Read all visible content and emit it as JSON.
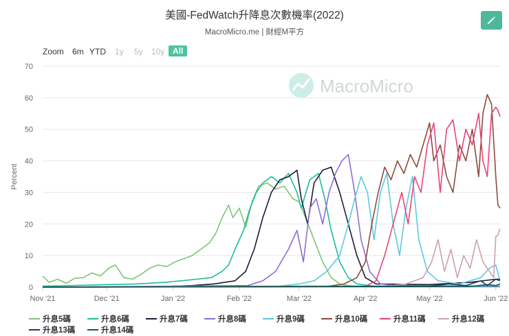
{
  "header": {
    "title": "美國-FedWatch升降息次數機率(2022)",
    "subtitle": "MacroMicro.me | 財經M平方",
    "edit_icon": "pencil-icon"
  },
  "range_selector": {
    "label": "Zoom",
    "buttons": [
      {
        "label": "6m",
        "state": "enabled"
      },
      {
        "label": "YTD",
        "state": "enabled"
      },
      {
        "label": "1y",
        "state": "disabled"
      },
      {
        "label": "5y",
        "state": "disabled"
      },
      {
        "label": "10y",
        "state": "disabled"
      },
      {
        "label": "All",
        "state": "active"
      }
    ]
  },
  "watermark": "MacroMicro",
  "chart_data": {
    "type": "line",
    "title": "美國-FedWatch升降息次數機率(2022)",
    "ylabel": "Percent",
    "ylim": [
      0,
      70
    ],
    "yticks": [
      0,
      10,
      20,
      30,
      40,
      50,
      60,
      70
    ],
    "xlim": [
      "2021-11-01",
      "2022-06-03"
    ],
    "xticks": [
      {
        "date": "2021-11-01",
        "label": "Nov '21"
      },
      {
        "date": "2021-12-01",
        "label": "Dec '21"
      },
      {
        "date": "2022-01-01",
        "label": "Jan '22"
      },
      {
        "date": "2022-02-01",
        "label": "Feb '22"
      },
      {
        "date": "2022-03-01",
        "label": "Mar '22"
      },
      {
        "date": "2022-04-01",
        "label": "Apr '22"
      },
      {
        "date": "2022-05-01",
        "label": "May '22"
      },
      {
        "date": "2022-06-01",
        "label": "Jun '22"
      }
    ],
    "grid": "horizontal",
    "legend_position": "bottom",
    "series": [
      {
        "name": "升息5碼",
        "color": "#7cc576",
        "points": [
          [
            "2021-11-01",
            3.5
          ],
          [
            "2021-11-04",
            1.5
          ],
          [
            "2021-11-08",
            2.5
          ],
          [
            "2021-11-12",
            1.2
          ],
          [
            "2021-11-16",
            2.8
          ],
          [
            "2021-11-20",
            3.0
          ],
          [
            "2021-11-24",
            4.5
          ],
          [
            "2021-11-28",
            3.5
          ],
          [
            "2021-12-02",
            6.0
          ],
          [
            "2021-12-05",
            7.0
          ],
          [
            "2021-12-09",
            3.0
          ],
          [
            "2021-12-13",
            2.5
          ],
          [
            "2021-12-17",
            4.0
          ],
          [
            "2021-12-21",
            6.0
          ],
          [
            "2021-12-25",
            7.0
          ],
          [
            "2021-12-29",
            6.5
          ],
          [
            "2022-01-02",
            8.0
          ],
          [
            "2022-01-06",
            9.0
          ],
          [
            "2022-01-10",
            10.0
          ],
          [
            "2022-01-14",
            12.0
          ],
          [
            "2022-01-18",
            14.0
          ],
          [
            "2022-01-21",
            17.0
          ],
          [
            "2022-01-24",
            22.0
          ],
          [
            "2022-01-27",
            26.0
          ],
          [
            "2022-01-29",
            22.0
          ],
          [
            "2022-02-01",
            25.0
          ],
          [
            "2022-02-04",
            19.0
          ],
          [
            "2022-02-07",
            27.0
          ],
          [
            "2022-02-10",
            32.0
          ],
          [
            "2022-02-14",
            33.0
          ],
          [
            "2022-02-18",
            31.0
          ],
          [
            "2022-02-22",
            32.0
          ],
          [
            "2022-02-26",
            28.0
          ],
          [
            "2022-03-01",
            27.0
          ],
          [
            "2022-03-04",
            22.0
          ],
          [
            "2022-03-08",
            15.0
          ],
          [
            "2022-03-12",
            8.0
          ],
          [
            "2022-03-16",
            3.0
          ],
          [
            "2022-03-20",
            1.0
          ],
          [
            "2022-03-24",
            0.5
          ],
          [
            "2022-03-28",
            0.2
          ],
          [
            "2022-04-05",
            0.1
          ],
          [
            "2022-06-03",
            0.1
          ]
        ]
      },
      {
        "name": "升息6碼",
        "color": "#1abc9c",
        "points": [
          [
            "2021-11-01",
            0.3
          ],
          [
            "2021-11-15",
            0.5
          ],
          [
            "2021-12-01",
            0.8
          ],
          [
            "2021-12-15",
            1.0
          ],
          [
            "2021-12-28",
            1.5
          ],
          [
            "2022-01-05",
            2.0
          ],
          [
            "2022-01-12",
            2.5
          ],
          [
            "2022-01-19",
            3.0
          ],
          [
            "2022-01-24",
            5.0
          ],
          [
            "2022-01-27",
            7.0
          ],
          [
            "2022-01-30",
            12.0
          ],
          [
            "2022-02-03",
            18.0
          ],
          [
            "2022-02-06",
            25.0
          ],
          [
            "2022-02-09",
            30.0
          ],
          [
            "2022-02-12",
            33.0
          ],
          [
            "2022-02-16",
            35.0
          ],
          [
            "2022-02-20",
            33.0
          ],
          [
            "2022-02-24",
            36.0
          ],
          [
            "2022-02-28",
            30.0
          ],
          [
            "2022-03-02",
            25.0
          ],
          [
            "2022-03-06",
            34.0
          ],
          [
            "2022-03-10",
            36.0
          ],
          [
            "2022-03-13",
            28.0
          ],
          [
            "2022-03-16",
            18.0
          ],
          [
            "2022-03-20",
            8.0
          ],
          [
            "2022-03-24",
            3.0
          ],
          [
            "2022-03-28",
            1.0
          ],
          [
            "2022-04-05",
            0.3
          ],
          [
            "2022-06-03",
            0.2
          ]
        ]
      },
      {
        "name": "升息7碼",
        "color": "#1a1a3a",
        "points": [
          [
            "2021-11-01",
            0.0
          ],
          [
            "2021-12-25",
            0.1
          ],
          [
            "2022-01-10",
            0.5
          ],
          [
            "2022-01-20",
            1.0
          ],
          [
            "2022-01-30",
            2.0
          ],
          [
            "2022-02-04",
            5.0
          ],
          [
            "2022-02-08",
            12.0
          ],
          [
            "2022-02-12",
            22.0
          ],
          [
            "2022-02-16",
            30.0
          ],
          [
            "2022-02-20",
            34.0
          ],
          [
            "2022-02-24",
            35.0
          ],
          [
            "2022-02-28",
            37.0
          ],
          [
            "2022-03-02",
            28.0
          ],
          [
            "2022-03-05",
            20.0
          ],
          [
            "2022-03-08",
            33.0
          ],
          [
            "2022-03-12",
            37.0
          ],
          [
            "2022-03-16",
            38.0
          ],
          [
            "2022-03-20",
            30.0
          ],
          [
            "2022-03-24",
            20.0
          ],
          [
            "2022-03-28",
            10.0
          ],
          [
            "2022-04-01",
            3.0
          ],
          [
            "2022-04-06",
            1.0
          ],
          [
            "2022-05-01",
            0.8
          ],
          [
            "2022-05-20",
            1.5
          ],
          [
            "2022-06-01",
            2.5
          ],
          [
            "2022-06-03",
            2.0
          ]
        ]
      },
      {
        "name": "升息8碼",
        "color": "#8e6bd8",
        "points": [
          [
            "2021-11-01",
            0.0
          ],
          [
            "2022-02-05",
            0.5
          ],
          [
            "2022-02-12",
            2.0
          ],
          [
            "2022-02-18",
            5.0
          ],
          [
            "2022-02-24",
            12.0
          ],
          [
            "2022-02-28",
            18.0
          ],
          [
            "2022-03-03",
            8.0
          ],
          [
            "2022-03-06",
            25.0
          ],
          [
            "2022-03-09",
            28.0
          ],
          [
            "2022-03-12",
            20.0
          ],
          [
            "2022-03-15",
            30.0
          ],
          [
            "2022-03-18",
            36.0
          ],
          [
            "2022-03-21",
            40.0
          ],
          [
            "2022-03-24",
            42.0
          ],
          [
            "2022-03-27",
            30.0
          ],
          [
            "2022-03-30",
            15.0
          ],
          [
            "2022-04-03",
            5.0
          ],
          [
            "2022-04-08",
            1.0
          ],
          [
            "2022-04-15",
            0.5
          ],
          [
            "2022-06-03",
            0.3
          ]
        ]
      },
      {
        "name": "升息9碼",
        "color": "#5bc8e0",
        "points": [
          [
            "2021-11-01",
            0.0
          ],
          [
            "2022-02-20",
            0.3
          ],
          [
            "2022-03-01",
            1.0
          ],
          [
            "2022-03-08",
            2.0
          ],
          [
            "2022-03-14",
            5.0
          ],
          [
            "2022-03-20",
            10.0
          ],
          [
            "2022-03-24",
            20.0
          ],
          [
            "2022-03-27",
            28.0
          ],
          [
            "2022-03-30",
            35.0
          ],
          [
            "2022-04-02",
            30.0
          ],
          [
            "2022-04-05",
            15.0
          ],
          [
            "2022-04-08",
            30.0
          ],
          [
            "2022-04-11",
            36.0
          ],
          [
            "2022-04-14",
            20.0
          ],
          [
            "2022-04-17",
            10.0
          ],
          [
            "2022-04-20",
            25.0
          ],
          [
            "2022-04-23",
            35.0
          ],
          [
            "2022-04-26",
            15.0
          ],
          [
            "2022-04-30",
            5.0
          ],
          [
            "2022-05-05",
            2.0
          ],
          [
            "2022-05-15",
            1.0
          ],
          [
            "2022-05-25",
            3.0
          ],
          [
            "2022-05-29",
            6.0
          ],
          [
            "2022-06-01",
            7.0
          ],
          [
            "2022-06-03",
            2.0
          ]
        ]
      },
      {
        "name": "升息10碼",
        "color": "#8b4a3a",
        "points": [
          [
            "2021-11-01",
            0.0
          ],
          [
            "2022-03-15",
            0.3
          ],
          [
            "2022-03-22",
            1.0
          ],
          [
            "2022-03-28",
            3.0
          ],
          [
            "2022-04-01",
            8.0
          ],
          [
            "2022-04-04",
            20.0
          ],
          [
            "2022-04-07",
            30.0
          ],
          [
            "2022-04-10",
            38.0
          ],
          [
            "2022-04-13",
            34.0
          ],
          [
            "2022-04-16",
            40.0
          ],
          [
            "2022-04-19",
            36.0
          ],
          [
            "2022-04-22",
            42.0
          ],
          [
            "2022-04-25",
            38.0
          ],
          [
            "2022-04-28",
            45.0
          ],
          [
            "2022-05-01",
            52.0
          ],
          [
            "2022-05-03",
            40.0
          ],
          [
            "2022-05-06",
            45.0
          ],
          [
            "2022-05-09",
            35.0
          ],
          [
            "2022-05-12",
            30.0
          ],
          [
            "2022-05-15",
            45.0
          ],
          [
            "2022-05-18",
            40.0
          ],
          [
            "2022-05-21",
            50.0
          ],
          [
            "2022-05-24",
            35.0
          ],
          [
            "2022-05-26",
            55.0
          ],
          [
            "2022-05-28",
            61.0
          ],
          [
            "2022-05-30",
            58.0
          ],
          [
            "2022-06-01",
            35.0
          ],
          [
            "2022-06-02",
            26.0
          ],
          [
            "2022-06-03",
            25.0
          ]
        ]
      },
      {
        "name": "升息11碼",
        "color": "#e8437a",
        "points": [
          [
            "2021-11-01",
            0.0
          ],
          [
            "2022-04-01",
            0.3
          ],
          [
            "2022-04-06",
            2.0
          ],
          [
            "2022-04-10",
            10.0
          ],
          [
            "2022-04-14",
            20.0
          ],
          [
            "2022-04-18",
            30.0
          ],
          [
            "2022-04-21",
            20.0
          ],
          [
            "2022-04-24",
            35.0
          ],
          [
            "2022-04-27",
            30.0
          ],
          [
            "2022-04-30",
            45.0
          ],
          [
            "2022-05-03",
            52.0
          ],
          [
            "2022-05-06",
            30.0
          ],
          [
            "2022-05-09",
            50.0
          ],
          [
            "2022-05-12",
            53.0
          ],
          [
            "2022-05-15",
            40.0
          ],
          [
            "2022-05-18",
            50.0
          ],
          [
            "2022-05-21",
            45.0
          ],
          [
            "2022-05-24",
            55.0
          ],
          [
            "2022-05-26",
            40.0
          ],
          [
            "2022-05-28",
            35.0
          ],
          [
            "2022-05-30",
            55.0
          ],
          [
            "2022-06-01",
            57.0
          ],
          [
            "2022-06-02",
            56.0
          ],
          [
            "2022-06-03",
            54.0
          ]
        ]
      },
      {
        "name": "升息12碼",
        "color": "#c9a0b4",
        "points": [
          [
            "2021-11-01",
            0.0
          ],
          [
            "2022-04-10",
            0.3
          ],
          [
            "2022-04-20",
            1.0
          ],
          [
            "2022-04-28",
            3.0
          ],
          [
            "2022-05-02",
            8.0
          ],
          [
            "2022-05-05",
            15.0
          ],
          [
            "2022-05-08",
            5.0
          ],
          [
            "2022-05-11",
            12.0
          ],
          [
            "2022-05-14",
            3.0
          ],
          [
            "2022-05-17",
            10.0
          ],
          [
            "2022-05-20",
            6.0
          ],
          [
            "2022-05-23",
            15.0
          ],
          [
            "2022-05-26",
            8.0
          ],
          [
            "2022-05-29",
            5.0
          ],
          [
            "2022-05-31",
            3.0
          ],
          [
            "2022-06-01",
            16.0
          ],
          [
            "2022-06-02",
            16.5
          ],
          [
            "2022-06-03",
            18.5
          ]
        ]
      },
      {
        "name": "升息13碼",
        "color": "#1f3a5f",
        "points": [
          [
            "2021-11-01",
            0.0
          ],
          [
            "2022-05-01",
            0.3
          ],
          [
            "2022-05-10",
            1.0
          ],
          [
            "2022-05-18",
            0.5
          ],
          [
            "2022-05-25",
            2.0
          ],
          [
            "2022-05-28",
            0.5
          ],
          [
            "2022-06-01",
            2.5
          ],
          [
            "2022-06-03",
            2.5
          ]
        ]
      },
      {
        "name": "升息14碼",
        "color": "#0f5a4a",
        "points": [
          [
            "2021-11-01",
            0.0
          ],
          [
            "2022-05-20",
            0.2
          ],
          [
            "2022-05-28",
            0.8
          ],
          [
            "2022-06-01",
            0.5
          ],
          [
            "2022-06-03",
            1.0
          ]
        ]
      }
    ]
  }
}
